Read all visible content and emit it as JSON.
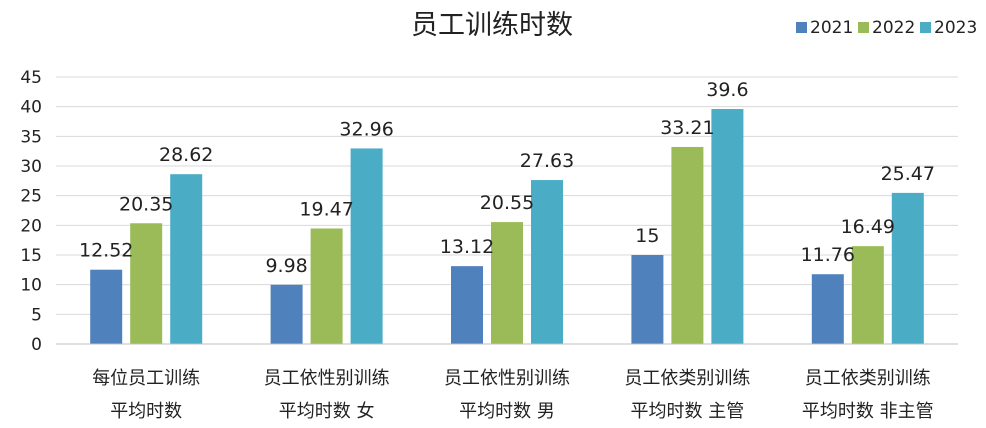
{
  "chart_data": {
    "type": "bar",
    "title": "员工训练时数",
    "xlabel": "",
    "ylabel": "",
    "ylim": [
      0,
      45
    ],
    "yticks": [
      0,
      5,
      10,
      15,
      20,
      25,
      30,
      35,
      40,
      45
    ],
    "grid": true,
    "legend_position": "top-right",
    "categories": [
      [
        "每位员工训练",
        "平均时数"
      ],
      [
        "员工依性别训练",
        "平均时数 女"
      ],
      [
        "员工依性别训练",
        "平均时数 男"
      ],
      [
        "员工依类别训练",
        "平均时数 主管"
      ],
      [
        "员工依类别训练",
        "平均时数 非主管"
      ]
    ],
    "series": [
      {
        "name": "2021",
        "color": "#4f81bd",
        "values": [
          12.52,
          9.98,
          13.12,
          15,
          11.76
        ]
      },
      {
        "name": "2022",
        "color": "#9bbb59",
        "values": [
          20.35,
          19.47,
          20.55,
          33.21,
          16.49
        ]
      },
      {
        "name": "2023",
        "color": "#4bacc6",
        "values": [
          28.62,
          32.96,
          27.63,
          39.6,
          25.47
        ]
      }
    ]
  }
}
